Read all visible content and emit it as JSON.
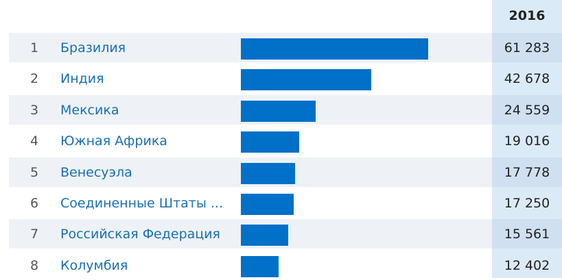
{
  "table": {
    "year_header": "2016"
  },
  "colors": {
    "bar": "#0070c8",
    "country_link": "#1a6fb3",
    "year_column_bg": "#dbeaf7"
  },
  "chart_data": {
    "type": "bar",
    "orientation": "horizontal",
    "series": [
      {
        "values": [
          61283,
          42678,
          24559,
          19016,
          17778,
          17250,
          15561,
          12402
        ]
      }
    ],
    "xlim": [
      0,
      61283
    ],
    "rows": [
      {
        "rank": "1",
        "name": "Бразилия",
        "value": 61283,
        "value_label": "61 283"
      },
      {
        "rank": "2",
        "name": "Индия",
        "value": 42678,
        "value_label": "42 678"
      },
      {
        "rank": "3",
        "name": "Мексика",
        "value": 24559,
        "value_label": "24 559"
      },
      {
        "rank": "4",
        "name": "Южная Африка",
        "value": 19016,
        "value_label": "19 016"
      },
      {
        "rank": "5",
        "name": "Венесуэла",
        "value": 17778,
        "value_label": "17 778"
      },
      {
        "rank": "6",
        "name": "Соединенные Штаты ...",
        "value": 17250,
        "value_label": "17 250"
      },
      {
        "rank": "7",
        "name": "Российская Федерация",
        "value": 15561,
        "value_label": "15 561"
      },
      {
        "rank": "8",
        "name": "Колумбия",
        "value": 12402,
        "value_label": "12 402"
      }
    ]
  }
}
